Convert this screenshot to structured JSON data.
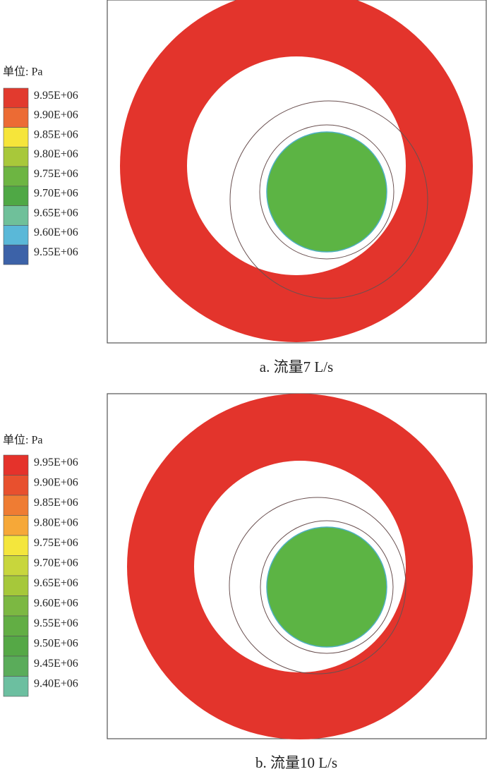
{
  "panels": [
    {
      "legend": {
        "title": "单位: Pa",
        "labels": [
          "9.95E+06",
          "9.90E+06",
          "9.85E+06",
          "9.80E+06",
          "9.75E+06",
          "9.70E+06",
          "9.65E+06",
          "9.60E+06",
          "9.55E+06"
        ],
        "colors": [
          "#e23a2e",
          "#ec6b34",
          "#f6e53a",
          "#a8c83a",
          "#6db542",
          "#4fa845",
          "#6fc09a",
          "#5ab8d8",
          "#3c62a8"
        ]
      },
      "caption": "a. 流量7 L/s"
    },
    {
      "legend": {
        "title": "单位: Pa",
        "labels": [
          "9.95E+06",
          "9.90E+06",
          "9.85E+06",
          "9.80E+06",
          "9.75E+06",
          "9.70E+06",
          "9.65E+06",
          "9.60E+06",
          "9.55E+06",
          "9.50E+06",
          "9.45E+06",
          "9.40E+06"
        ],
        "colors": [
          "#e5322b",
          "#e8502e",
          "#ef7c33",
          "#f6a838",
          "#f4e63c",
          "#c8d63c",
          "#a6c83a",
          "#7cb842",
          "#62ae44",
          "#55a846",
          "#5aac5a",
          "#6cbfa0"
        ]
      },
      "caption": "b. 流量10 L/s"
    }
  ]
}
